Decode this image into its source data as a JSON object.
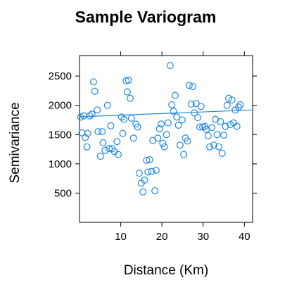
{
  "chart_data": {
    "type": "scatter",
    "title": "Sample Variogram",
    "xlabel": "Distance (Km)",
    "ylabel": "Semivariance",
    "xlim": [
      0,
      42
    ],
    "ylim": [
      0,
      2850
    ],
    "xticks": [
      10,
      20,
      30,
      40
    ],
    "yticks": [
      500,
      1000,
      1500,
      2000,
      2500
    ],
    "grid": false,
    "trend_line": {
      "x": [
        0,
        42
      ],
      "y": [
        1805,
        1920
      ]
    },
    "points": [
      {
        "x": 0.3,
        "y": 1800
      },
      {
        "x": 0.6,
        "y": 1530
      },
      {
        "x": 1.0,
        "y": 1820
      },
      {
        "x": 1.4,
        "y": 1450
      },
      {
        "x": 1.8,
        "y": 1290
      },
      {
        "x": 2.0,
        "y": 1520
      },
      {
        "x": 2.5,
        "y": 1820
      },
      {
        "x": 3.0,
        "y": 1850
      },
      {
        "x": 3.4,
        "y": 2400
      },
      {
        "x": 3.7,
        "y": 2240
      },
      {
        "x": 4.3,
        "y": 1920
      },
      {
        "x": 4.5,
        "y": 1550
      },
      {
        "x": 5.1,
        "y": 1130
      },
      {
        "x": 5.5,
        "y": 1550
      },
      {
        "x": 5.7,
        "y": 1360
      },
      {
        "x": 6.2,
        "y": 1230
      },
      {
        "x": 6.8,
        "y": 2000
      },
      {
        "x": 7.2,
        "y": 1260
      },
      {
        "x": 7.6,
        "y": 1650
      },
      {
        "x": 7.9,
        "y": 1260
      },
      {
        "x": 8.5,
        "y": 1210
      },
      {
        "x": 9.1,
        "y": 1380
      },
      {
        "x": 9.4,
        "y": 1160
      },
      {
        "x": 10.2,
        "y": 1800
      },
      {
        "x": 10.5,
        "y": 1520
      },
      {
        "x": 10.8,
        "y": 1760
      },
      {
        "x": 11.3,
        "y": 2420
      },
      {
        "x": 11.6,
        "y": 2230
      },
      {
        "x": 11.9,
        "y": 2430
      },
      {
        "x": 12.3,
        "y": 2120
      },
      {
        "x": 12.6,
        "y": 1780
      },
      {
        "x": 13.1,
        "y": 1440
      },
      {
        "x": 13.7,
        "y": 1680
      },
      {
        "x": 14.1,
        "y": 1630
      },
      {
        "x": 14.5,
        "y": 840
      },
      {
        "x": 15.0,
        "y": 670
      },
      {
        "x": 15.4,
        "y": 520
      },
      {
        "x": 15.8,
        "y": 720
      },
      {
        "x": 16.3,
        "y": 1060
      },
      {
        "x": 16.6,
        "y": 860
      },
      {
        "x": 17.0,
        "y": 1070
      },
      {
        "x": 17.5,
        "y": 870
      },
      {
        "x": 17.8,
        "y": 1400
      },
      {
        "x": 18.3,
        "y": 540
      },
      {
        "x": 18.6,
        "y": 890
      },
      {
        "x": 19.0,
        "y": 1440
      },
      {
        "x": 19.4,
        "y": 1600
      },
      {
        "x": 19.8,
        "y": 1680
      },
      {
        "x": 20.2,
        "y": 1350
      },
      {
        "x": 20.6,
        "y": 1290
      },
      {
        "x": 21.1,
        "y": 1500
      },
      {
        "x": 21.5,
        "y": 1700
      },
      {
        "x": 22.0,
        "y": 2680
      },
      {
        "x": 22.4,
        "y": 2010
      },
      {
        "x": 22.8,
        "y": 1900
      },
      {
        "x": 23.2,
        "y": 2170
      },
      {
        "x": 23.6,
        "y": 1800
      },
      {
        "x": 24.0,
        "y": 1660
      },
      {
        "x": 24.4,
        "y": 1320
      },
      {
        "x": 24.9,
        "y": 1750
      },
      {
        "x": 25.3,
        "y": 1160
      },
      {
        "x": 25.7,
        "y": 1440
      },
      {
        "x": 26.2,
        "y": 1390
      },
      {
        "x": 26.6,
        "y": 2340
      },
      {
        "x": 27.1,
        "y": 2020
      },
      {
        "x": 27.5,
        "y": 2320
      },
      {
        "x": 27.9,
        "y": 1870
      },
      {
        "x": 28.3,
        "y": 2030
      },
      {
        "x": 28.7,
        "y": 1790
      },
      {
        "x": 29.2,
        "y": 1630
      },
      {
        "x": 29.5,
        "y": 1980
      },
      {
        "x": 29.9,
        "y": 1630
      },
      {
        "x": 30.4,
        "y": 1640
      },
      {
        "x": 30.8,
        "y": 1590
      },
      {
        "x": 31.2,
        "y": 1480
      },
      {
        "x": 31.6,
        "y": 1290
      },
      {
        "x": 32.1,
        "y": 1620
      },
      {
        "x": 32.6,
        "y": 1320
      },
      {
        "x": 33.0,
        "y": 1760
      },
      {
        "x": 33.4,
        "y": 1500
      },
      {
        "x": 33.8,
        "y": 1290
      },
      {
        "x": 34.2,
        "y": 1720
      },
      {
        "x": 34.6,
        "y": 1180
      },
      {
        "x": 35.0,
        "y": 1490
      },
      {
        "x": 35.4,
        "y": 1640
      },
      {
        "x": 35.8,
        "y": 2000
      },
      {
        "x": 36.2,
        "y": 2120
      },
      {
        "x": 36.6,
        "y": 1670
      },
      {
        "x": 37.0,
        "y": 2090
      },
      {
        "x": 37.4,
        "y": 1700
      },
      {
        "x": 37.8,
        "y": 1920
      },
      {
        "x": 38.2,
        "y": 1640
      },
      {
        "x": 38.6,
        "y": 1970
      },
      {
        "x": 39.0,
        "y": 2010
      }
    ]
  }
}
